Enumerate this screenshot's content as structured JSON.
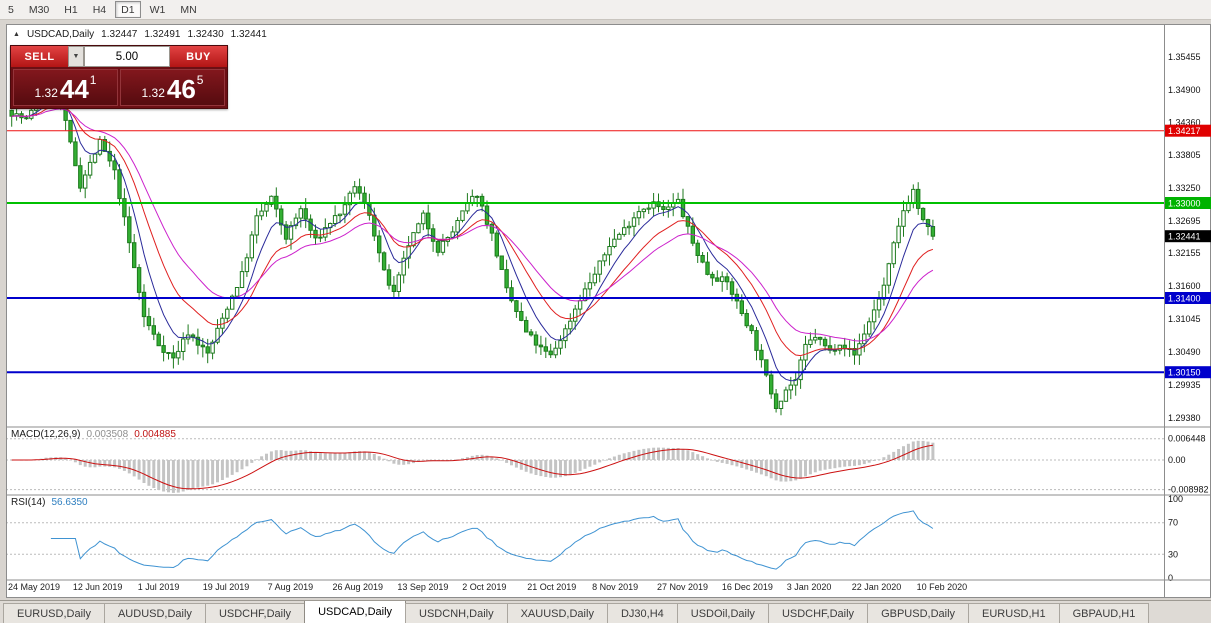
{
  "toolbar": {
    "timeframes": [
      "5",
      "M30",
      "H1",
      "H4",
      "D1",
      "W1",
      "MN"
    ],
    "active_timeframe": "D1"
  },
  "chart_header": {
    "collapse_icon": "▲",
    "title": "USDCAD,Daily",
    "open": "1.32447",
    "high": "1.32491",
    "low": "1.32430",
    "close": "1.32441"
  },
  "trade_panel": {
    "sell_label": "SELL",
    "buy_label": "BUY",
    "volume": "5.00",
    "dropdown_icon": "▼",
    "sell_price": {
      "prefix": "1.32",
      "big": "44",
      "sup": "1"
    },
    "buy_price": {
      "prefix": "1.32",
      "big": "46",
      "sup": "5"
    }
  },
  "price_axis": {
    "ticks": [
      "1.35455",
      "1.34900",
      "1.34360",
      "1.33805",
      "1.33250",
      "1.32695",
      "1.32155",
      "1.31600",
      "1.31045",
      "1.30490",
      "1.29935",
      "1.29380"
    ],
    "badges": [
      {
        "text": "1.34217",
        "price": 1.34217,
        "color": "#e00000"
      },
      {
        "text": "1.33000",
        "price": 1.33,
        "color": "#00b300"
      },
      {
        "text": "1.32441",
        "price": 1.32441,
        "color": "#000000"
      },
      {
        "text": "1.31400",
        "price": 1.314,
        "color": "#0000cc"
      },
      {
        "text": "1.30150",
        "price": 1.3015,
        "color": "#0000cc"
      }
    ]
  },
  "indicators": {
    "macd": {
      "label": "MACD(12,26,9)",
      "value_main": "0.003508",
      "value_signal": "0.004885",
      "axis": [
        {
          "text": "0.006448",
          "value": 0.006448
        },
        {
          "text": "0.00",
          "value": 0
        },
        {
          "text": "-0.008982",
          "value": -0.008982
        }
      ]
    },
    "rsi": {
      "label": "RSI(14)",
      "value": "56.6350",
      "axis": [
        {
          "text": "100",
          "value": 100
        },
        {
          "text": "70",
          "value": 70
        },
        {
          "text": "30",
          "value": 30
        },
        {
          "text": "0",
          "value": 0
        }
      ]
    }
  },
  "time_axis": [
    "24 May 2019",
    "12 Jun 2019",
    "1 Jul 2019",
    "19 Jul 2019",
    "7 Aug 2019",
    "26 Aug 2019",
    "13 Sep 2019",
    "2 Oct 2019",
    "21 Oct 2019",
    "8 Nov 2019",
    "27 Nov 2019",
    "16 Dec 2019",
    "3 Jan 2020",
    "22 Jan 2020",
    "10 Feb 2020"
  ],
  "tabs": [
    "EURUSD,Daily",
    "AUDUSD,Daily",
    "USDCHF,Daily",
    "USDCAD,Daily",
    "USDCNH,Daily",
    "XAUUSD,Daily",
    "DJ30,H4",
    "USDOil,Daily",
    "USDCHF,Daily",
    "GBPUSD,Daily",
    "EURUSD,H1",
    "GBPAUD,H1"
  ],
  "active_tab": "USDCAD,Daily",
  "active_tab_index": 3,
  "chart_data": {
    "type": "candlestick",
    "symbol": "USDCAD",
    "period": "Daily",
    "last_close": 1.32441,
    "visible_price_range": [
      1.2938,
      1.3566
    ],
    "candle_count": 189,
    "horizontal_levels": [
      {
        "price": 1.34217,
        "color": "#ee1111",
        "width": 1
      },
      {
        "price": 1.33,
        "color": "#00c000",
        "width": 2
      },
      {
        "price": 1.314,
        "color": "#0000cc",
        "width": 2
      },
      {
        "price": 1.3015,
        "color": "#0000cc",
        "width": 2
      }
    ],
    "close_path_anchors": [
      [
        0,
        1.3452
      ],
      [
        3,
        1.344
      ],
      [
        7,
        1.3492
      ],
      [
        10,
        1.3468
      ],
      [
        14,
        1.333
      ],
      [
        18,
        1.3402
      ],
      [
        21,
        1.3352
      ],
      [
        24,
        1.3232
      ],
      [
        27,
        1.3108
      ],
      [
        30,
        1.3062
      ],
      [
        33,
        1.3038
      ],
      [
        36,
        1.3082
      ],
      [
        40,
        1.3046
      ],
      [
        44,
        1.3125
      ],
      [
        47,
        1.318
      ],
      [
        50,
        1.3275
      ],
      [
        53,
        1.3308
      ],
      [
        56,
        1.3242
      ],
      [
        59,
        1.329
      ],
      [
        62,
        1.3236
      ],
      [
        65,
        1.3268
      ],
      [
        68,
        1.3292
      ],
      [
        70,
        1.333
      ],
      [
        73,
        1.3282
      ],
      [
        76,
        1.3182
      ],
      [
        78,
        1.3146
      ],
      [
        81,
        1.323
      ],
      [
        84,
        1.3278
      ],
      [
        87,
        1.3222
      ],
      [
        90,
        1.3252
      ],
      [
        93,
        1.3298
      ],
      [
        95,
        1.3316
      ],
      [
        98,
        1.3246
      ],
      [
        101,
        1.3152
      ],
      [
        105,
        1.3082
      ],
      [
        108,
        1.3054
      ],
      [
        110,
        1.3042
      ],
      [
        113,
        1.3086
      ],
      [
        116,
        1.314
      ],
      [
        119,
        1.318
      ],
      [
        122,
        1.323
      ],
      [
        125,
        1.3256
      ],
      [
        128,
        1.3288
      ],
      [
        131,
        1.33
      ],
      [
        133,
        1.3286
      ],
      [
        136,
        1.3304
      ],
      [
        139,
        1.3232
      ],
      [
        142,
        1.3182
      ],
      [
        146,
        1.3166
      ],
      [
        148,
        1.3132
      ],
      [
        151,
        1.3082
      ],
      [
        154,
        1.3006
      ],
      [
        156,
        1.2958
      ],
      [
        158,
        1.2986
      ],
      [
        160,
        1.3002
      ],
      [
        162,
        1.3058
      ],
      [
        164,
        1.3076
      ],
      [
        167,
        1.305
      ],
      [
        169,
        1.3066
      ],
      [
        172,
        1.3044
      ],
      [
        175,
        1.31
      ],
      [
        178,
        1.316
      ],
      [
        180,
        1.3228
      ],
      [
        182,
        1.3288
      ],
      [
        184,
        1.3322
      ],
      [
        185,
        1.3292
      ],
      [
        186,
        1.3268
      ],
      [
        188,
        1.32441
      ]
    ],
    "moving_averages": [
      {
        "period": 7,
        "color": "#2a2a9a",
        "name": "ma-fast-blue"
      },
      {
        "period": 15,
        "color": "#e02020",
        "name": "ma-mid-red"
      },
      {
        "period": 25,
        "color": "#cc22cc",
        "name": "ma-slow-magenta"
      }
    ],
    "macd_params": [
      12,
      26,
      9
    ],
    "rsi_period": 14,
    "colors": {
      "candle_outline": "#1d7a1d",
      "bull_fill": "#ffffff",
      "bear_fill": "#33af33",
      "macd_histogram": "#c4c4c4",
      "macd_signal": "#cc1111",
      "rsi_line": "#3f93d2"
    }
  }
}
